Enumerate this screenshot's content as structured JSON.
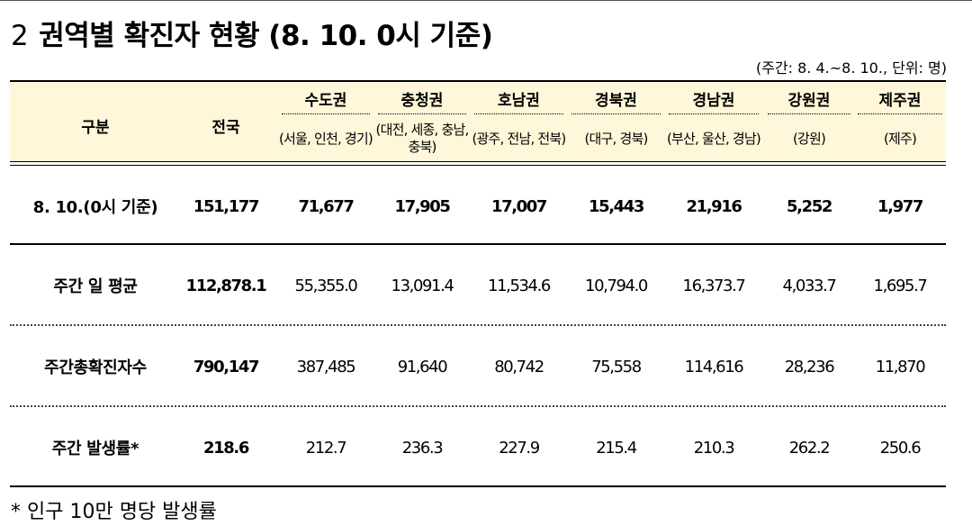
{
  "title": {
    "number": "2",
    "text": "권역별 확진자 현황 (8. 10. 0시 기준)"
  },
  "unit_note": "(주간: 8. 4.~8. 10., 단위: 명)",
  "header": {
    "category": "구분",
    "nation": "전국"
  },
  "regions": [
    {
      "name": "수도권",
      "sub": "(서울, 인천, 경기)"
    },
    {
      "name": "충청권",
      "sub": "(대전, 세종, 충남, 충북)"
    },
    {
      "name": "호남권",
      "sub": "(광주, 전남, 전북)"
    },
    {
      "name": "경북권",
      "sub": "(대구, 경북)"
    },
    {
      "name": "경남권",
      "sub": "(부산, 울산, 경남)"
    },
    {
      "name": "강원권",
      "sub": "(강원)"
    },
    {
      "name": "제주권",
      "sub": "(제주)"
    }
  ],
  "rows": [
    {
      "label": "8. 10.(0시 기준)",
      "nation": "151,177",
      "values": [
        "71,677",
        "17,905",
        "17,007",
        "15,443",
        "21,916",
        "5,252",
        "1,977"
      ]
    },
    {
      "label": "주간 일 평균",
      "nation": "112,878.1",
      "values": [
        "55,355.0",
        "13,091.4",
        "11,534.6",
        "10,794.0",
        "16,373.7",
        "4,033.7",
        "1,695.7"
      ]
    },
    {
      "label": "주간총확진자수",
      "nation": "790,147",
      "values": [
        "387,485",
        "91,640",
        "80,742",
        "75,558",
        "114,616",
        "28,236",
        "11,870"
      ]
    },
    {
      "label": "주간 발생률*",
      "nation": "218.6",
      "values": [
        "212.7",
        "236.3",
        "227.9",
        "215.4",
        "210.3",
        "262.2",
        "250.6"
      ]
    }
  ],
  "footnote": "* 인구 10만 명당 발생률"
}
